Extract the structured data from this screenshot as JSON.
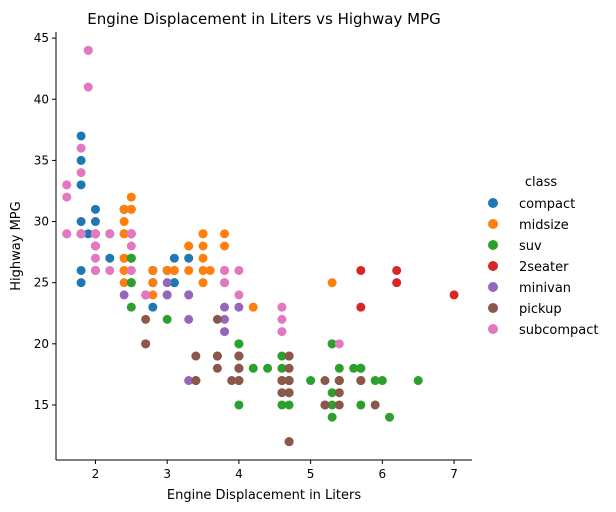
{
  "chart_data": {
    "type": "scatter",
    "title": "Engine Displacement in Liters vs Highway MPG",
    "xlabel": "Engine Displacement in Liters",
    "ylabel": "Highway MPG",
    "xlim": [
      1.45,
      7.25
    ],
    "ylim": [
      10.5,
      45.5
    ],
    "xticks": [
      2,
      3,
      4,
      5,
      6,
      7
    ],
    "yticks": [
      15,
      20,
      25,
      30,
      35,
      40,
      45
    ],
    "grid": false,
    "legend": {
      "title": "class",
      "position": "right"
    },
    "series": [
      {
        "name": "compact",
        "color": "#1f77b4",
        "points": [
          [
            1.8,
            29
          ],
          [
            1.8,
            29
          ],
          [
            2.0,
            31
          ],
          [
            2.0,
            30
          ],
          [
            2.8,
            26
          ],
          [
            2.8,
            26
          ],
          [
            3.1,
            27
          ],
          [
            1.8,
            26
          ],
          [
            1.8,
            25
          ],
          [
            2.0,
            28
          ],
          [
            2.0,
            29
          ],
          [
            2.8,
            25
          ],
          [
            2.8,
            25
          ],
          [
            3.1,
            25
          ],
          [
            3.1,
            25
          ],
          [
            2.2,
            29
          ],
          [
            2.2,
            27
          ],
          [
            2.4,
            31
          ],
          [
            2.4,
            31
          ],
          [
            3.0,
            26
          ],
          [
            3.0,
            26
          ],
          [
            3.3,
            27
          ],
          [
            1.8,
            37
          ],
          [
            1.8,
            35
          ],
          [
            1.8,
            33
          ],
          [
            1.8,
            30
          ],
          [
            1.9,
            29
          ],
          [
            2.0,
            29
          ],
          [
            2.5,
            29
          ],
          [
            2.5,
            29
          ],
          [
            2.8,
            23
          ],
          [
            2.4,
            29
          ],
          [
            2.0,
            26
          ]
        ]
      },
      {
        "name": "midsize",
        "color": "#ff7f0e",
        "points": [
          [
            2.4,
            27
          ],
          [
            2.4,
            30
          ],
          [
            3.1,
            26
          ],
          [
            3.5,
            29
          ],
          [
            3.6,
            26
          ],
          [
            2.4,
            27
          ],
          [
            3.0,
            26
          ],
          [
            3.3,
            28
          ],
          [
            3.3,
            28
          ],
          [
            3.8,
            26
          ],
          [
            3.8,
            28
          ],
          [
            3.8,
            29
          ],
          [
            4.2,
            23
          ],
          [
            2.4,
            26
          ],
          [
            2.5,
            32
          ],
          [
            2.5,
            31
          ],
          [
            3.3,
            26
          ],
          [
            3.5,
            27
          ],
          [
            3.5,
            28
          ],
          [
            2.5,
            31
          ],
          [
            2.5,
            27
          ],
          [
            2.4,
            29
          ],
          [
            2.4,
            31
          ],
          [
            2.8,
            24
          ],
          [
            2.8,
            26
          ],
          [
            3.5,
            26
          ],
          [
            2.4,
            25
          ],
          [
            2.8,
            25
          ],
          [
            5.3,
            25
          ],
          [
            3.0,
            24
          ],
          [
            3.5,
            25
          ],
          [
            2.5,
            29
          ],
          [
            3.1,
            26
          ],
          [
            3.5,
            29
          ]
        ]
      },
      {
        "name": "suv",
        "color": "#2ca02c",
        "points": [
          [
            5.3,
            20
          ],
          [
            5.3,
            15
          ],
          [
            5.3,
            20
          ],
          [
            5.7,
            17
          ],
          [
            6.0,
            17
          ],
          [
            5.7,
            18
          ],
          [
            6.5,
            17
          ],
          [
            4.0,
            17
          ],
          [
            4.0,
            19
          ],
          [
            4.6,
            17
          ],
          [
            5.0,
            17
          ],
          [
            4.0,
            15
          ],
          [
            4.7,
            19
          ],
          [
            4.7,
            17
          ],
          [
            5.7,
            15
          ],
          [
            6.1,
            14
          ],
          [
            2.5,
            25
          ],
          [
            2.5,
            23
          ],
          [
            2.5,
            27
          ],
          [
            2.5,
            25
          ],
          [
            2.5,
            27
          ],
          [
            3.0,
            22
          ],
          [
            3.3,
            24
          ],
          [
            4.0,
            19
          ],
          [
            4.0,
            20
          ],
          [
            4.6,
            15
          ],
          [
            5.4,
            18
          ],
          [
            4.2,
            18
          ],
          [
            4.4,
            18
          ],
          [
            4.6,
            19
          ],
          [
            5.4,
            17
          ],
          [
            4.0,
            20
          ],
          [
            5.3,
            14
          ],
          [
            5.3,
            16
          ],
          [
            5.6,
            18
          ],
          [
            5.4,
            17
          ],
          [
            4.7,
            15
          ],
          [
            4.7,
            17
          ],
          [
            4.6,
            18
          ],
          [
            5.9,
            17
          ],
          [
            4.0,
            18
          ],
          [
            5.7,
            18
          ]
        ]
      },
      {
        "name": "2seater",
        "color": "#d62728",
        "points": [
          [
            5.7,
            26
          ],
          [
            5.7,
            23
          ],
          [
            6.2,
            26
          ],
          [
            6.2,
            25
          ],
          [
            7.0,
            24
          ]
        ]
      },
      {
        "name": "minivan",
        "color": "#9467bd",
        "points": [
          [
            2.4,
            24
          ],
          [
            3.0,
            24
          ],
          [
            3.3,
            22
          ],
          [
            3.3,
            24
          ],
          [
            3.3,
            17
          ],
          [
            3.8,
            22
          ],
          [
            3.8,
            23
          ],
          [
            3.8,
            21
          ],
          [
            4.0,
            23
          ],
          [
            3.0,
            25
          ]
        ]
      },
      {
        "name": "pickup",
        "color": "#8c564b",
        "points": [
          [
            2.7,
            20
          ],
          [
            2.7,
            20
          ],
          [
            2.7,
            22
          ],
          [
            3.4,
            17
          ],
          [
            3.4,
            19
          ],
          [
            4.0,
            17
          ],
          [
            4.0,
            18
          ],
          [
            4.7,
            17
          ],
          [
            4.7,
            16
          ],
          [
            4.7,
            12
          ],
          [
            5.2,
            17
          ],
          [
            5.2,
            15
          ],
          [
            5.7,
            17
          ],
          [
            5.9,
            15
          ],
          [
            4.7,
            12
          ],
          [
            4.7,
            16
          ],
          [
            4.7,
            17
          ],
          [
            5.2,
            15
          ],
          [
            3.7,
            19
          ],
          [
            3.7,
            18
          ],
          [
            3.9,
            17
          ],
          [
            4.6,
            16
          ],
          [
            4.6,
            17
          ],
          [
            5.4,
            15
          ],
          [
            5.4,
            16
          ],
          [
            5.4,
            17
          ],
          [
            4.0,
            18
          ],
          [
            4.0,
            19
          ],
          [
            4.7,
            19
          ],
          [
            4.7,
            18
          ],
          [
            3.7,
            22
          ],
          [
            3.7,
            19
          ],
          [
            2.7,
            24
          ],
          [
            3.4,
            17
          ]
        ]
      },
      {
        "name": "subcompact",
        "color": "#e377c2",
        "points": [
          [
            1.9,
            44
          ],
          [
            1.9,
            44
          ],
          [
            1.9,
            41
          ],
          [
            1.8,
            36
          ],
          [
            1.8,
            34
          ],
          [
            1.6,
            33
          ],
          [
            1.6,
            32
          ],
          [
            1.6,
            29
          ],
          [
            1.8,
            29
          ],
          [
            2.0,
            29
          ],
          [
            2.0,
            27
          ],
          [
            2.0,
            26
          ],
          [
            2.0,
            28
          ],
          [
            2.0,
            29
          ],
          [
            2.2,
            26
          ],
          [
            2.5,
            28
          ],
          [
            2.5,
            26
          ],
          [
            2.5,
            29
          ],
          [
            3.8,
            26
          ],
          [
            3.8,
            25
          ],
          [
            4.0,
            26
          ],
          [
            4.0,
            24
          ],
          [
            4.6,
            22
          ],
          [
            4.6,
            21
          ],
          [
            4.6,
            23
          ],
          [
            5.4,
            20
          ],
          [
            3.8,
            25
          ],
          [
            2.7,
            24
          ],
          [
            2.5,
            26
          ],
          [
            2.2,
            29
          ],
          [
            1.8,
            29
          ],
          [
            2.0,
            29
          ],
          [
            1.6,
            33
          ],
          [
            1.6,
            29
          ]
        ]
      }
    ]
  }
}
